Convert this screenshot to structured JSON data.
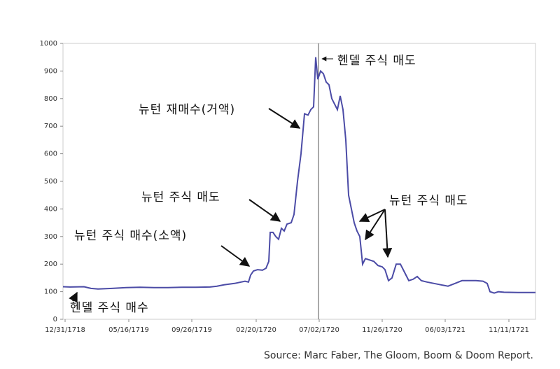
{
  "chart_data": {
    "type": "line",
    "source": "Source: Marc Faber, The Gloom, Boom & Doom Report.",
    "xlim": [
      -3,
      672
    ],
    "ylim": [
      0,
      1000
    ],
    "xticks": [
      {
        "value": 0,
        "label": "12/31/1718"
      },
      {
        "value": 91,
        "label": "05/16/1719"
      },
      {
        "value": 181,
        "label": "09/26/1719"
      },
      {
        "value": 273,
        "label": "02/20/1720"
      },
      {
        "value": 363,
        "label": "07/02/1720"
      },
      {
        "value": 453,
        "label": "11/26/1720"
      },
      {
        "value": 543,
        "label": "06/03/1721"
      },
      {
        "value": 634,
        "label": "11/11/1721"
      }
    ],
    "yticks": [
      0,
      100,
      200,
      300,
      400,
      500,
      600,
      700,
      800,
      900,
      1000
    ],
    "color": "#4b4ba6",
    "x": [
      -3,
      7,
      27,
      37,
      47,
      67,
      87,
      107,
      127,
      147,
      167,
      187,
      207,
      217,
      227,
      242,
      257,
      262,
      265,
      269,
      275,
      282,
      287,
      291,
      293,
      297,
      301,
      305,
      309,
      313,
      317,
      323,
      327,
      332,
      337,
      342,
      347,
      351,
      355,
      358,
      361,
      365,
      369,
      373,
      377,
      381,
      385,
      389,
      393,
      397,
      401,
      405,
      409,
      413,
      417,
      421,
      425,
      429,
      435,
      441,
      447,
      453,
      457,
      462,
      467,
      473,
      479,
      485,
      491,
      497,
      503,
      509,
      517,
      527,
      537,
      547,
      557,
      567,
      577,
      587,
      597,
      603,
      607,
      613,
      619,
      627,
      647,
      672
    ],
    "values": [
      118,
      117,
      118,
      112,
      110,
      112,
      115,
      116,
      115,
      115,
      116,
      116,
      117,
      120,
      125,
      130,
      138,
      135,
      160,
      175,
      180,
      178,
      185,
      210,
      315,
      315,
      300,
      290,
      330,
      320,
      345,
      350,
      380,
      500,
      600,
      745,
      740,
      760,
      770,
      950,
      870,
      900,
      890,
      860,
      850,
      800,
      780,
      760,
      810,
      760,
      650,
      450,
      400,
      350,
      320,
      300,
      200,
      220,
      215,
      210,
      195,
      190,
      180,
      140,
      150,
      200,
      200,
      170,
      140,
      145,
      155,
      140,
      135,
      130,
      125,
      120,
      130,
      140,
      140,
      140,
      138,
      130,
      100,
      95,
      100,
      98,
      97,
      97
    ],
    "marker_line_x": 362,
    "annotations": [
      "헨델 주식 매도",
      "뉴턴 재매수(거액)",
      "뉴턴 주식 매도",
      "뉴턴 주식 매수(소액)",
      "헨델 주식 매수",
      "뉴턴 주식 매도"
    ]
  }
}
